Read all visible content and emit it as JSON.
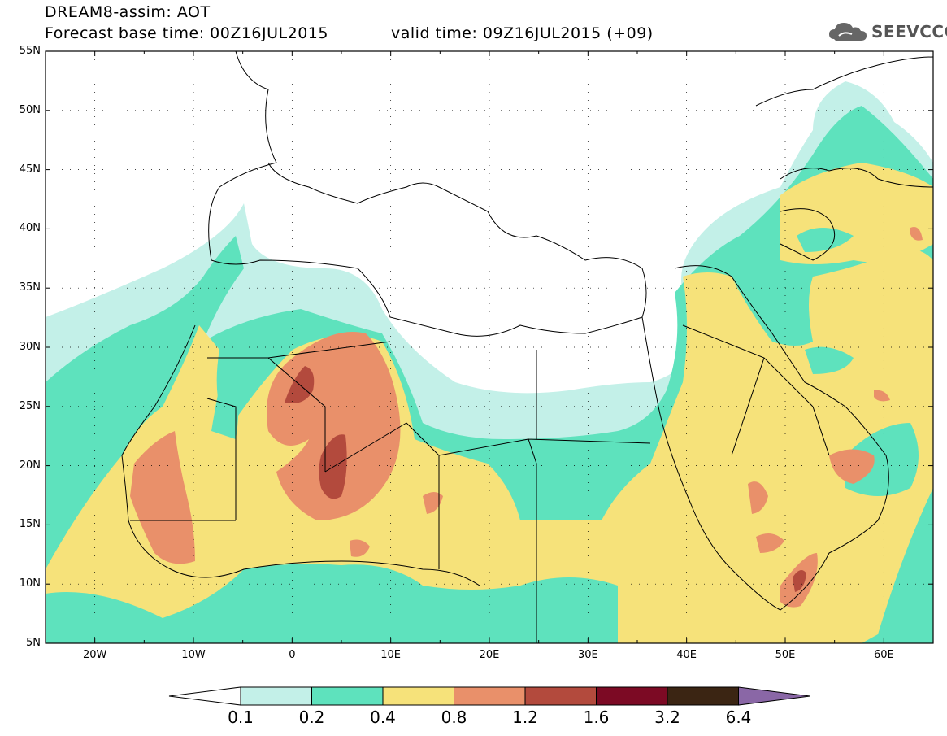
{
  "header": {
    "title": "DREAM8-assim: AOT",
    "base_time": "Forecast base time: 00Z16JUL2015",
    "valid_time": "valid time: 09Z16JUL2015 (+09)",
    "logo_text": "SEEVCCC"
  },
  "map": {
    "lon_range": [
      -25,
      65
    ],
    "lat_range": [
      5,
      55
    ],
    "lat_labels": [
      "55N",
      "50N",
      "45N",
      "40N",
      "35N",
      "30N",
      "25N",
      "20N",
      "15N",
      "10N",
      "5N"
    ],
    "lon_labels": [
      "20W",
      "10W",
      "0",
      "10E",
      "20E",
      "30E",
      "40E",
      "50E",
      "60E"
    ]
  },
  "colorbar": {
    "levels": [
      "0.1",
      "0.2",
      "0.4",
      "0.8",
      "1.2",
      "1.6",
      "3.2",
      "6.4"
    ],
    "colors": [
      "#ffffff",
      "#c3f0e8",
      "#5ee2bd",
      "#f6e27a",
      "#e9906a",
      "#b34a3d",
      "#7c0a24",
      "#3b2513",
      "#8a67a6"
    ]
  }
}
